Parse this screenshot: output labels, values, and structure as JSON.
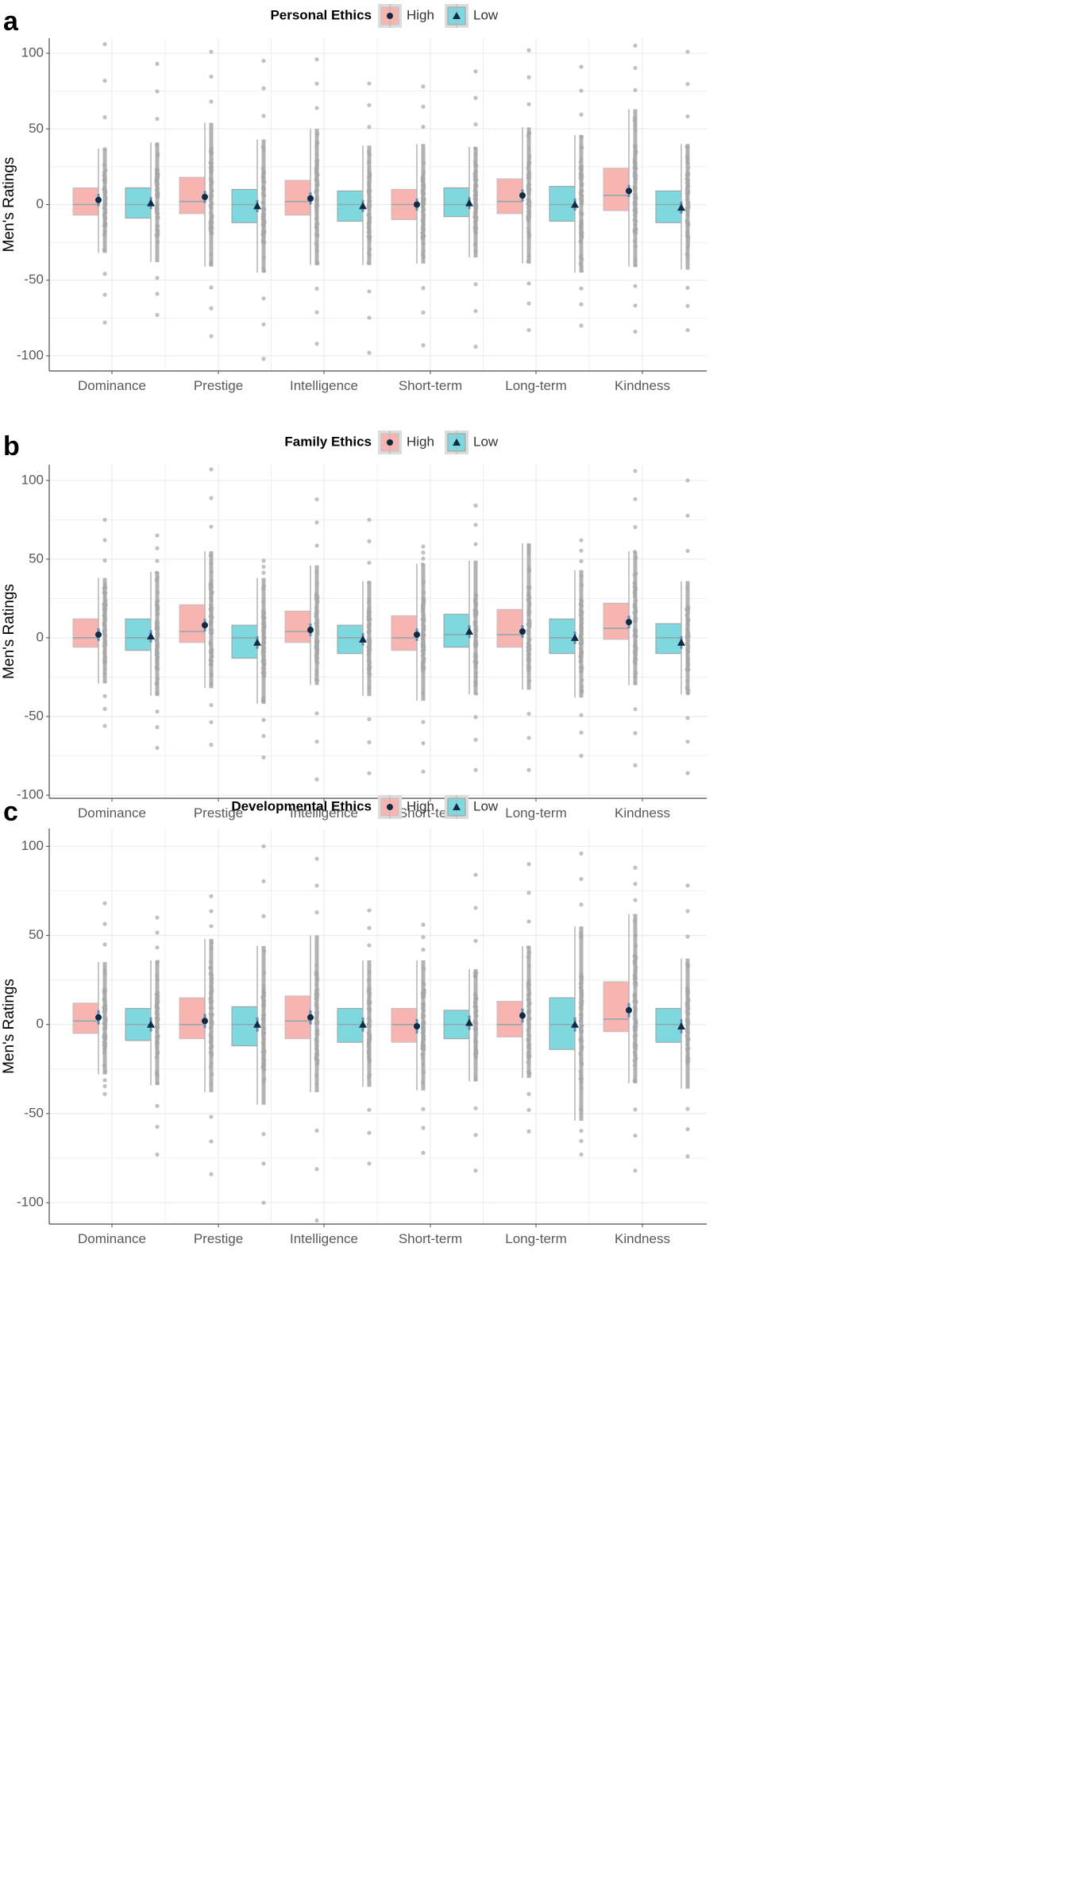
{
  "colors": {
    "high": "#F8B4B0",
    "low": "#7ED8DE",
    "high_border": "#BFBFBF",
    "low_border": "#9E9E9E",
    "median": "#8FA9AE",
    "whisker": "#B4B4B4",
    "jitter": "#A6A6A6",
    "mean_marker": "#102A43",
    "error_bar": "#5B8DB8",
    "grid": "#EBEBEB",
    "axis": "#4D4D4D",
    "tick_text": "#595959"
  },
  "chart_data": [
    {
      "panel_label": "a",
      "type": "boxplot",
      "legend_title": "Personal Ethics",
      "legend": [
        {
          "name": "High",
          "marker": "circle"
        },
        {
          "name": "Low",
          "marker": "triangle"
        }
      ],
      "ylabel": "Men's Ratings",
      "xlabel": "",
      "ylim": [
        -110,
        110
      ],
      "yticks": [
        100,
        50,
        0,
        -50,
        -100
      ],
      "categories": [
        "Dominance",
        "Prestige",
        "Intelligence",
        "Short-term",
        "Long-term",
        "Kindness"
      ],
      "series": [
        {
          "name": "High",
          "stats": [
            {
              "q1": -7,
              "median": 0,
              "q3": 11,
              "wmin": -32,
              "wmax": 37,
              "mean": 3,
              "min": -78,
              "max": 106
            },
            {
              "q1": -6,
              "median": 2,
              "q3": 18,
              "wmin": -41,
              "wmax": 54,
              "mean": 5,
              "min": -87,
              "max": 101
            },
            {
              "q1": -7,
              "median": 2,
              "q3": 16,
              "wmin": -40,
              "wmax": 50,
              "mean": 4,
              "min": -92,
              "max": 96
            },
            {
              "q1": -10,
              "median": 0,
              "q3": 10,
              "wmin": -39,
              "wmax": 40,
              "mean": 0,
              "min": -93,
              "max": 78
            },
            {
              "q1": -6,
              "median": 2,
              "q3": 17,
              "wmin": -39,
              "wmax": 51,
              "mean": 6,
              "min": -83,
              "max": 102
            },
            {
              "q1": -4,
              "median": 6,
              "q3": 24,
              "wmin": -41,
              "wmax": 63,
              "mean": 9,
              "min": -84,
              "max": 105
            }
          ]
        },
        {
          "name": "Low",
          "stats": [
            {
              "q1": -9,
              "median": 0,
              "q3": 11,
              "wmin": -38,
              "wmax": 41,
              "mean": 1,
              "min": -73,
              "max": 93
            },
            {
              "q1": -12,
              "median": 0,
              "q3": 10,
              "wmin": -45,
              "wmax": 43,
              "mean": -1,
              "min": -102,
              "max": 95
            },
            {
              "q1": -11,
              "median": 0,
              "q3": 9,
              "wmin": -40,
              "wmax": 39,
              "mean": -1,
              "min": -98,
              "max": 80
            },
            {
              "q1": -8,
              "median": 0,
              "q3": 11,
              "wmin": -35,
              "wmax": 38,
              "mean": 1,
              "min": -94,
              "max": 88
            },
            {
              "q1": -11,
              "median": 0,
              "q3": 12,
              "wmin": -45,
              "wmax": 46,
              "mean": 0,
              "min": -80,
              "max": 91
            },
            {
              "q1": -12,
              "median": 0,
              "q3": 9,
              "wmin": -43,
              "wmax": 40,
              "mean": -2,
              "min": -83,
              "max": 101
            }
          ]
        }
      ]
    },
    {
      "panel_label": "b",
      "type": "boxplot",
      "legend_title": "Family Ethics",
      "legend": [
        {
          "name": "High",
          "marker": "circle"
        },
        {
          "name": "Low",
          "marker": "triangle"
        }
      ],
      "ylabel": "Men's Ratings",
      "xlabel": "",
      "ylim": [
        -102,
        110
      ],
      "yticks": [
        100,
        50,
        0,
        -50,
        -100
      ],
      "categories": [
        "Dominance",
        "Prestige",
        "Intelligence",
        "Short-term",
        "Long-term",
        "Kindness"
      ],
      "series": [
        {
          "name": "High",
          "stats": [
            {
              "q1": -6,
              "median": 0,
              "q3": 12,
              "wmin": -29,
              "wmax": 38,
              "mean": 2,
              "min": -56,
              "max": 75
            },
            {
              "q1": -3,
              "median": 4,
              "q3": 21,
              "wmin": -32,
              "wmax": 55,
              "mean": 8,
              "min": -68,
              "max": 107
            },
            {
              "q1": -3,
              "median": 4,
              "q3": 17,
              "wmin": -30,
              "wmax": 46,
              "mean": 5,
              "min": -90,
              "max": 88
            },
            {
              "q1": -8,
              "median": 0,
              "q3": 14,
              "wmin": -40,
              "wmax": 47,
              "mean": 2,
              "min": -85,
              "max": 58
            },
            {
              "q1": -6,
              "median": 2,
              "q3": 18,
              "wmin": -33,
              "wmax": 60,
              "mean": 4,
              "min": -84,
              "max": 54
            },
            {
              "q1": -1,
              "median": 6,
              "q3": 22,
              "wmin": -30,
              "wmax": 55,
              "mean": 10,
              "min": -81,
              "max": 106
            }
          ]
        },
        {
          "name": "Low",
          "stats": [
            {
              "q1": -8,
              "median": 0,
              "q3": 12,
              "wmin": -37,
              "wmax": 42,
              "mean": 1,
              "min": -70,
              "max": 65
            },
            {
              "q1": -13,
              "median": 0,
              "q3": 8,
              "wmin": -42,
              "wmax": 38,
              "mean": -3,
              "min": -76,
              "max": 49
            },
            {
              "q1": -10,
              "median": 0,
              "q3": 8,
              "wmin": -37,
              "wmax": 36,
              "mean": -1,
              "min": -86,
              "max": 75
            },
            {
              "q1": -6,
              "median": 2,
              "q3": 15,
              "wmin": -36,
              "wmax": 49,
              "mean": 4,
              "min": -84,
              "max": 84
            },
            {
              "q1": -10,
              "median": 0,
              "q3": 12,
              "wmin": -38,
              "wmax": 43,
              "mean": 0,
              "min": -75,
              "max": 62
            },
            {
              "q1": -10,
              "median": 0,
              "q3": 9,
              "wmin": -36,
              "wmax": 36,
              "mean": -3,
              "min": -86,
              "max": 100
            }
          ]
        }
      ]
    },
    {
      "panel_label": "c",
      "type": "boxplot",
      "legend_title": "Developmental Ethics",
      "legend": [
        {
          "name": "High",
          "marker": "circle"
        },
        {
          "name": "Low",
          "marker": "triangle"
        }
      ],
      "ylabel": "Men's Ratings",
      "xlabel": "",
      "ylim": [
        -112,
        110
      ],
      "yticks": [
        100,
        50,
        0,
        -50,
        -100
      ],
      "categories": [
        "Dominance",
        "Prestige",
        "Intelligence",
        "Short-term",
        "Long-term",
        "Kindness"
      ],
      "series": [
        {
          "name": "High",
          "stats": [
            {
              "q1": -5,
              "median": 2,
              "q3": 12,
              "wmin": -28,
              "wmax": 35,
              "mean": 4,
              "min": -39,
              "max": 68
            },
            {
              "q1": -8,
              "median": 0,
              "q3": 15,
              "wmin": -38,
              "wmax": 48,
              "mean": 2,
              "min": -84,
              "max": 72
            },
            {
              "q1": -8,
              "median": 2,
              "q3": 16,
              "wmin": -38,
              "wmax": 50,
              "mean": 4,
              "min": -110,
              "max": 93
            },
            {
              "q1": -10,
              "median": 0,
              "q3": 9,
              "wmin": -37,
              "wmax": 36,
              "mean": -1,
              "min": -72,
              "max": 56
            },
            {
              "q1": -7,
              "median": 0,
              "q3": 13,
              "wmin": -30,
              "wmax": 44,
              "mean": 5,
              "min": -60,
              "max": 90
            },
            {
              "q1": -4,
              "median": 3,
              "q3": 24,
              "wmin": -33,
              "wmax": 62,
              "mean": 8,
              "min": -82,
              "max": 88
            }
          ]
        },
        {
          "name": "Low",
          "stats": [
            {
              "q1": -9,
              "median": 0,
              "q3": 9,
              "wmin": -34,
              "wmax": 36,
              "mean": 0,
              "min": -73,
              "max": 60
            },
            {
              "q1": -12,
              "median": 0,
              "q3": 10,
              "wmin": -45,
              "wmax": 44,
              "mean": 0,
              "min": -100,
              "max": 100
            },
            {
              "q1": -10,
              "median": 0,
              "q3": 9,
              "wmin": -35,
              "wmax": 36,
              "mean": 0,
              "min": -78,
              "max": 64
            },
            {
              "q1": -8,
              "median": 0,
              "q3": 8,
              "wmin": -32,
              "wmax": 31,
              "mean": 1,
              "min": -82,
              "max": 84
            },
            {
              "q1": -14,
              "median": 0,
              "q3": 15,
              "wmin": -54,
              "wmax": 55,
              "mean": 0,
              "min": -73,
              "max": 96
            },
            {
              "q1": -10,
              "median": 0,
              "q3": 9,
              "wmin": -36,
              "wmax": 37,
              "mean": -1,
              "min": -74,
              "max": 78
            }
          ]
        }
      ]
    }
  ]
}
